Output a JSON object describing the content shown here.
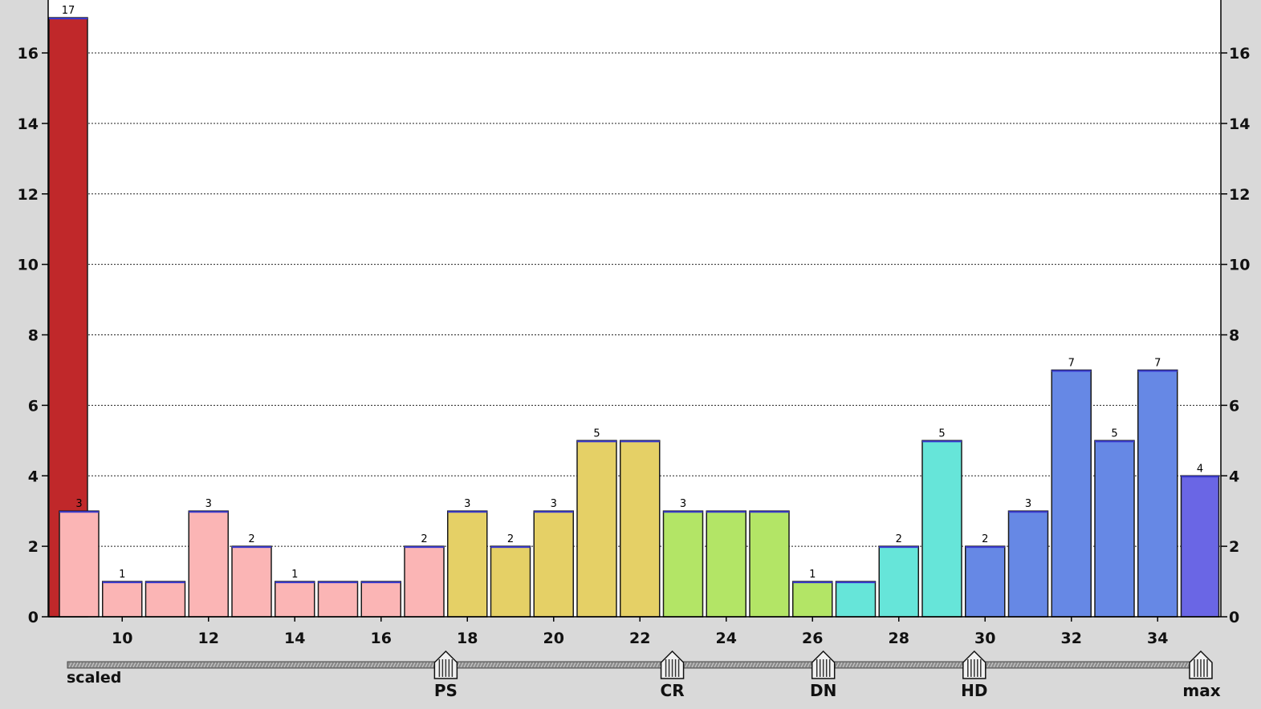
{
  "chart_data": {
    "type": "bar",
    "title": "",
    "xlabel": "",
    "ylabel": "",
    "ylim": [
      0,
      17.5
    ],
    "y_ticks": [
      "0",
      "2",
      "4",
      "6",
      "8",
      "10",
      "12",
      "14",
      "16"
    ],
    "x_tick_labels": [
      "10",
      "12",
      "14",
      "16",
      "18",
      "20",
      "22",
      "24",
      "26",
      "28",
      "30",
      "32",
      "34"
    ],
    "grid": true,
    "bars": [
      {
        "x": "<9",
        "value": 17,
        "label": "17",
        "color": "#c0282a"
      },
      {
        "x": "9",
        "value": 3,
        "label": "3",
        "color": "#fbb5b5"
      },
      {
        "x": "10",
        "value": 1,
        "label": "1",
        "color": "#fbb5b5"
      },
      {
        "x": "11",
        "value": 1,
        "label": "",
        "color": "#fbb5b5"
      },
      {
        "x": "12",
        "value": 3,
        "label": "3",
        "color": "#fbb5b5"
      },
      {
        "x": "13",
        "value": 2,
        "label": "2",
        "color": "#fbb5b5"
      },
      {
        "x": "14",
        "value": 1,
        "label": "1",
        "color": "#fbb5b5"
      },
      {
        "x": "15",
        "value": 1,
        "label": "",
        "color": "#fbb5b5"
      },
      {
        "x": "16",
        "value": 1,
        "label": "",
        "color": "#fbb5b5"
      },
      {
        "x": "17",
        "value": 2,
        "label": "2",
        "color": "#fbb5b5"
      },
      {
        "x": "18",
        "value": 3,
        "label": "3",
        "color": "#e5d066"
      },
      {
        "x": "19",
        "value": 2,
        "label": "2",
        "color": "#e5d066"
      },
      {
        "x": "20",
        "value": 3,
        "label": "3",
        "color": "#e5d066"
      },
      {
        "x": "21",
        "value": 5,
        "label": "5",
        "color": "#e5d066"
      },
      {
        "x": "22",
        "value": 5,
        "label": "",
        "color": "#e5d066"
      },
      {
        "x": "23",
        "value": 3,
        "label": "3",
        "color": "#b3e566"
      },
      {
        "x": "24",
        "value": 3,
        "label": "",
        "color": "#b3e566"
      },
      {
        "x": "25",
        "value": 3,
        "label": "",
        "color": "#b3e566"
      },
      {
        "x": "26",
        "value": 1,
        "label": "1",
        "color": "#b3e566"
      },
      {
        "x": "27",
        "value": 1,
        "label": "",
        "color": "#66e5d9"
      },
      {
        "x": "28",
        "value": 2,
        "label": "2",
        "color": "#66e5d9"
      },
      {
        "x": "29",
        "value": 5,
        "label": "5",
        "color": "#66e5d9"
      },
      {
        "x": "30",
        "value": 2,
        "label": "2",
        "color": "#6688e5"
      },
      {
        "x": "31",
        "value": 3,
        "label": "3",
        "color": "#6688e5"
      },
      {
        "x": "32",
        "value": 7,
        "label": "7",
        "color": "#6688e5"
      },
      {
        "x": "33",
        "value": 5,
        "label": "5",
        "color": "#6688e5"
      },
      {
        "x": "34",
        "value": 7,
        "label": "7",
        "color": "#6688e5"
      },
      {
        "x": "35",
        "value": 4,
        "label": "4",
        "color": "#6a66e5"
      }
    ],
    "markers": [
      {
        "label": "scaled",
        "x": 8.6
      },
      {
        "label": "PS",
        "x": 17.5
      },
      {
        "label": "CR",
        "x": 22.75
      },
      {
        "label": "DN",
        "x": 26.25
      },
      {
        "label": "HD",
        "x": 29.75
      },
      {
        "label": "max",
        "x": 35
      }
    ]
  }
}
